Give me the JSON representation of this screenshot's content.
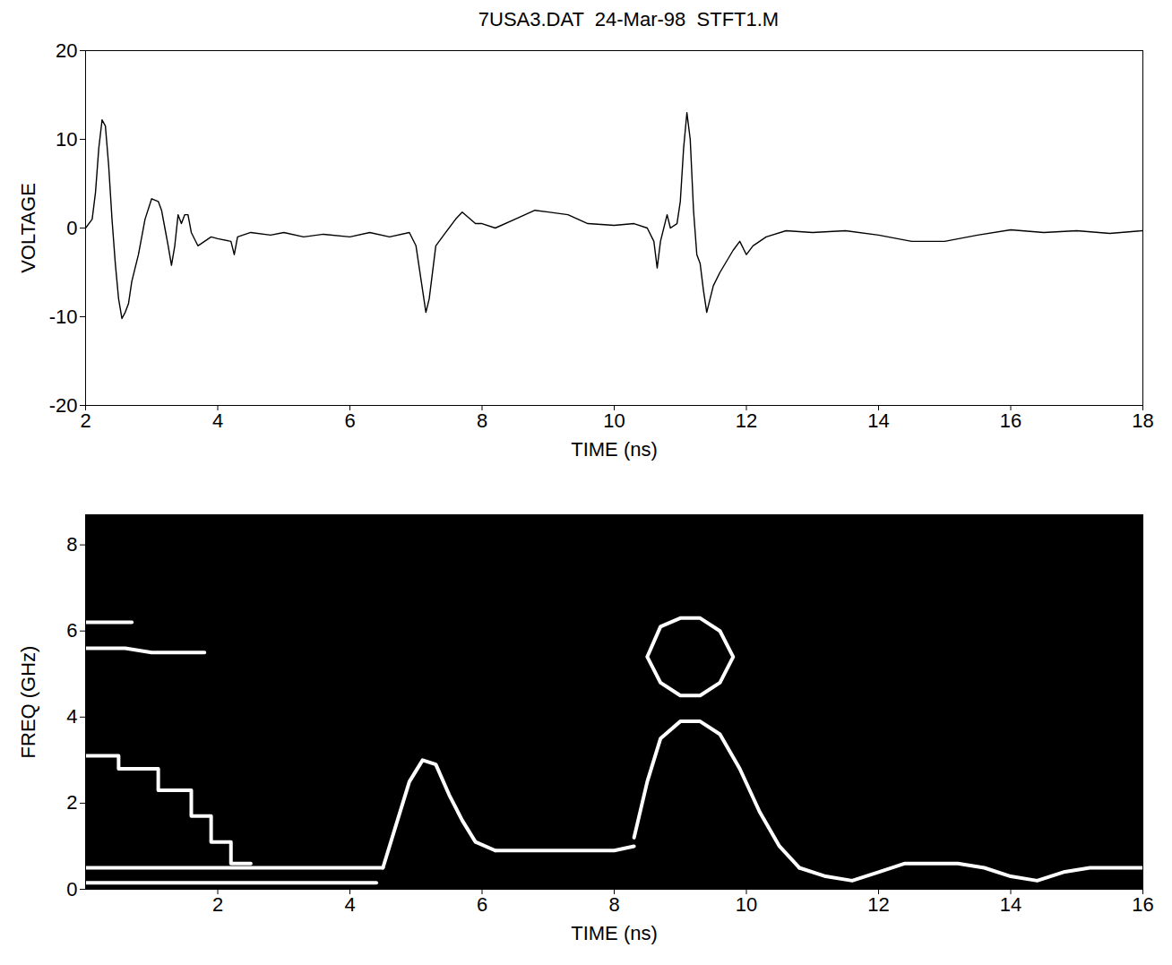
{
  "chart_data": [
    {
      "type": "line",
      "title": "7USA3.DAT  24-Mar-98  STFT1.M",
      "x_label": "TIME (ns)",
      "y_label": "VOLTAGE",
      "color": "#000000",
      "xlim": [
        2,
        18
      ],
      "ylim": [
        -20,
        20
      ],
      "xticks": [
        2,
        4,
        6,
        8,
        10,
        12,
        14,
        16,
        18
      ],
      "yticks": [
        -20,
        -10,
        0,
        10,
        20
      ],
      "x": [
        2.0,
        2.1,
        2.15,
        2.2,
        2.25,
        2.3,
        2.35,
        2.4,
        2.45,
        2.5,
        2.55,
        2.6,
        2.65,
        2.7,
        2.8,
        2.9,
        3.0,
        3.1,
        3.15,
        3.2,
        3.25,
        3.3,
        3.35,
        3.4,
        3.45,
        3.5,
        3.55,
        3.6,
        3.7,
        3.8,
        3.9,
        4.0,
        4.2,
        4.25,
        4.3,
        4.5,
        4.8,
        5.0,
        5.3,
        5.6,
        6.0,
        6.3,
        6.6,
        6.9,
        7.0,
        7.1,
        7.15,
        7.2,
        7.3,
        7.45,
        7.6,
        7.7,
        7.9,
        8.0,
        8.2,
        8.5,
        8.8,
        9.0,
        9.3,
        9.6,
        10.0,
        10.3,
        10.5,
        10.6,
        10.65,
        10.7,
        10.8,
        10.85,
        10.95,
        11.0,
        11.05,
        11.1,
        11.15,
        11.2,
        11.25,
        11.3,
        11.35,
        11.4,
        11.45,
        11.5,
        11.6,
        11.8,
        11.9,
        12.0,
        12.1,
        12.3,
        12.6,
        13.0,
        13.5,
        14.0,
        14.5,
        15.0,
        15.5,
        16.0,
        16.5,
        17.0,
        17.5,
        18.0
      ],
      "values": [
        0,
        1,
        4,
        9,
        12.2,
        11.5,
        7,
        1,
        -4,
        -8,
        -10.2,
        -9.5,
        -8.5,
        -6,
        -3,
        1,
        3.3,
        3,
        2,
        0,
        -2,
        -4.2,
        -2,
        1.5,
        0.5,
        1.5,
        1.5,
        -0.5,
        -2,
        -1.5,
        -1,
        -1.2,
        -1.5,
        -3,
        -1,
        -0.5,
        -0.8,
        -0.5,
        -1,
        -0.7,
        -1,
        -0.5,
        -1,
        -0.5,
        -2,
        -7,
        -9.5,
        -8,
        -2,
        -0.5,
        1,
        1.8,
        0.5,
        0.5,
        0,
        1,
        2,
        1.8,
        1.5,
        0.5,
        0.3,
        0.5,
        0,
        -1.5,
        -4.5,
        -1.5,
        1.5,
        0,
        0.5,
        3,
        9,
        13,
        10,
        2,
        -3,
        -4,
        -7,
        -9.5,
        -8,
        -6.5,
        -5,
        -2.5,
        -1.5,
        -3,
        -2,
        -1,
        -0.3,
        -0.5,
        -0.3,
        -0.8,
        -1.5,
        -1.5,
        -0.8,
        -0.2,
        -0.5,
        -0.3,
        -0.6,
        -0.3
      ]
    },
    {
      "type": "line",
      "x_label": "TIME (ns)",
      "y_label": "FREQ (GHz)",
      "xlim": [
        0,
        16
      ],
      "ylim": [
        0,
        8.7
      ],
      "xticks": [
        2,
        4,
        6,
        8,
        10,
        12,
        14,
        16
      ],
      "yticks": [
        0,
        2,
        4,
        6,
        8
      ],
      "series": [
        {
          "color": "#ffffff",
          "x": [
            0,
            1,
            2,
            3,
            4,
            4.4
          ],
          "values": [
            0.15,
            0.15,
            0.15,
            0.15,
            0.15,
            0.15
          ]
        },
        {
          "color": "#ffffff",
          "x": [
            0,
            1,
            2,
            3,
            4,
            4.5
          ],
          "values": [
            0.5,
            0.5,
            0.5,
            0.5,
            0.5,
            0.5
          ]
        },
        {
          "color": "#ffffff",
          "x": [
            0,
            0.5,
            0.5,
            1.1,
            1.1,
            1.6,
            1.6,
            1.9,
            1.9,
            2.2,
            2.2,
            2.5
          ],
          "values": [
            3.1,
            3.1,
            2.8,
            2.8,
            2.3,
            2.3,
            1.7,
            1.7,
            1.1,
            1.1,
            0.6,
            0.6
          ]
        },
        {
          "color": "#ffffff",
          "x": [
            0,
            0.6,
            1,
            1.8
          ],
          "values": [
            5.6,
            5.6,
            5.5,
            5.5
          ]
        },
        {
          "color": "#ffffff",
          "x": [
            0,
            0.7
          ],
          "values": [
            6.2,
            6.2
          ]
        },
        {
          "color": "#ffffff",
          "x": [
            4.5,
            4.7,
            4.9,
            5.1,
            5.3,
            5.5,
            5.7,
            5.9,
            6.2
          ],
          "values": [
            0.5,
            1.5,
            2.5,
            3.0,
            2.9,
            2.2,
            1.6,
            1.1,
            0.9
          ]
        },
        {
          "color": "#ffffff",
          "x": [
            6.2,
            7,
            8,
            8.3
          ],
          "values": [
            0.9,
            0.9,
            0.9,
            1.0
          ]
        },
        {
          "color": "#ffffff",
          "x": [
            8.3,
            8.5,
            8.7,
            9,
            9.3,
            9.6,
            9.9,
            10.2,
            10.5,
            10.8
          ],
          "values": [
            1.2,
            2.5,
            3.5,
            3.9,
            3.9,
            3.6,
            2.8,
            1.8,
            1.0,
            0.5
          ]
        },
        {
          "color": "#ffffff",
          "x": [
            8.5,
            8.7,
            9.0,
            9.3,
            9.6,
            9.8,
            9.6,
            9.3,
            9.0,
            8.7,
            8.5
          ],
          "values": [
            5.4,
            6.1,
            6.3,
            6.3,
            6.0,
            5.4,
            4.8,
            4.5,
            4.5,
            4.8,
            5.4
          ]
        },
        {
          "color": "#ffffff",
          "x": [
            10.8,
            11.2,
            11.6,
            12.0,
            12.4,
            12.8,
            13.2,
            13.6,
            14,
            14.4,
            14.8,
            15.2,
            16
          ],
          "values": [
            0.5,
            0.3,
            0.2,
            0.4,
            0.6,
            0.6,
            0.6,
            0.5,
            0.3,
            0.2,
            0.4,
            0.5,
            0.5
          ]
        }
      ]
    }
  ]
}
